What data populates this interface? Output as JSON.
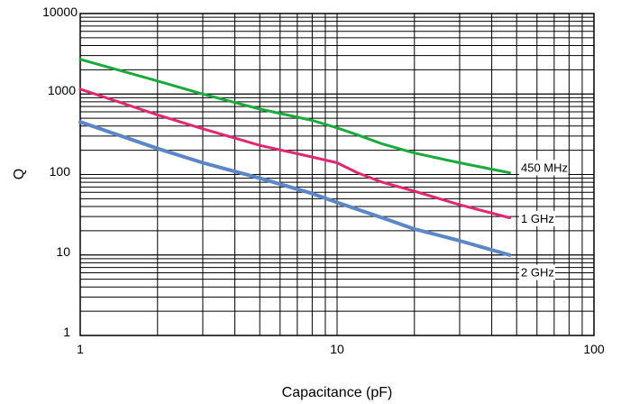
{
  "chart_data": {
    "type": "line",
    "xlabel": "Capacitance (pF)",
    "ylabel": "Q",
    "x_scale": "log",
    "y_scale": "log",
    "xlim": [
      1,
      100
    ],
    "ylim": [
      1,
      10000
    ],
    "x_ticks": [
      "1",
      "10",
      "100"
    ],
    "y_ticks": [
      "1",
      "10",
      "100",
      "1000",
      "10000"
    ],
    "grid": true,
    "series": [
      {
        "name": "450 MHz",
        "color": "#1aaa3c",
        "x": [
          1,
          2,
          3,
          5,
          8,
          10,
          12,
          15,
          20,
          30,
          47
        ],
        "y": [
          2700,
          1450,
          1000,
          650,
          470,
          380,
          310,
          240,
          185,
          140,
          105
        ]
      },
      {
        "name": "1 GHz",
        "color": "#e02872",
        "x": [
          1,
          2,
          3,
          5,
          8,
          10,
          12,
          15,
          20,
          30,
          47
        ],
        "y": [
          1150,
          550,
          370,
          230,
          165,
          140,
          105,
          80,
          62,
          42,
          29
        ]
      },
      {
        "name": "2 GHz",
        "color": "#5b86c8",
        "x": [
          1,
          2,
          3,
          5,
          8,
          10,
          15,
          20,
          30,
          47
        ],
        "y": [
          450,
          210,
          140,
          90,
          58,
          45,
          29,
          21,
          15,
          10
        ]
      }
    ]
  }
}
